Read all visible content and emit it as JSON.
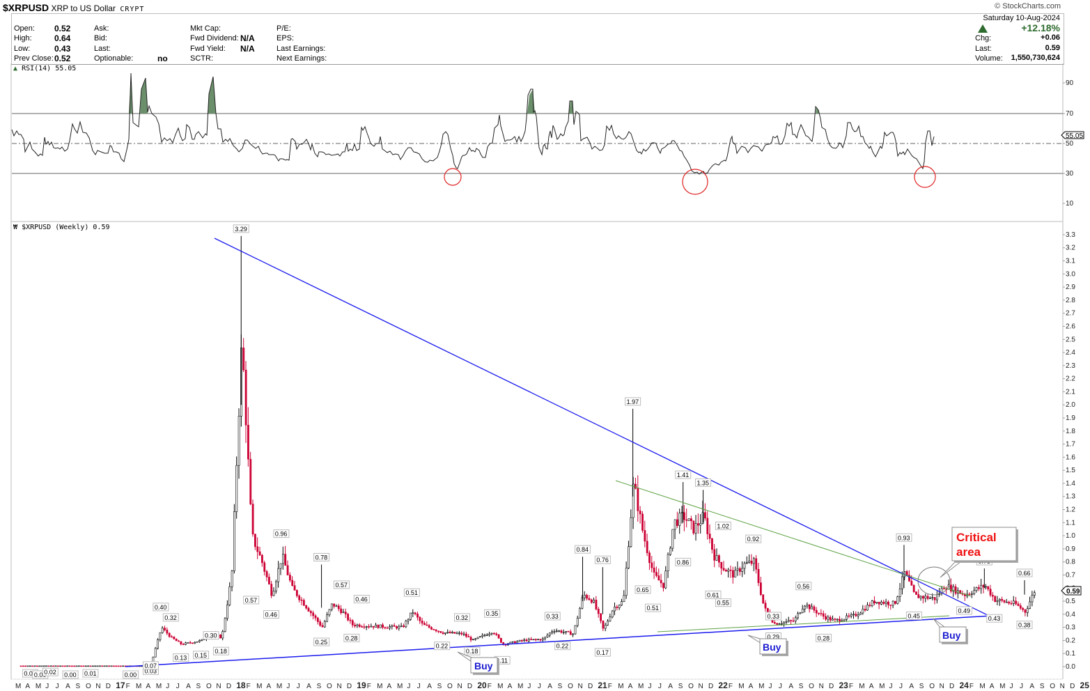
{
  "header": {
    "symbol": "$XRPUSD",
    "name": "XRP to US Dollar",
    "exchange": "CRYPT",
    "copyright": "© StockCharts.com",
    "date": "Saturday  10-Aug-2024",
    "change_pct": "+12.18%",
    "quote": {
      "open_label": "Open:",
      "open": "0.52",
      "high_label": "High:",
      "high": "0.64",
      "low_label": "Low:",
      "low": "0.43",
      "prev_close_label": "Prev Close:",
      "prev_close": "0.52",
      "ask_label": "Ask:",
      "bid_label": "Bid:",
      "last_label2": "Last:",
      "optionable_label": "Optionable:",
      "optionable": "no",
      "mktcap_label": "Mkt Cap:",
      "fwd_div_label": "Fwd Dividend:",
      "fwd_div": "N/A",
      "fwd_yield_label": "Fwd Yield:",
      "fwd_yield": "N/A",
      "sctr_label": "SCTR:",
      "pe_label": "P/E:",
      "eps_label": "EPS:",
      "last_earn_label": "Last Earnings:",
      "next_earn_label": "Next Earnings:"
    },
    "right": {
      "chg_label": "Chg:",
      "chg": "+0.06",
      "last_label": "Last:",
      "last": "0.59",
      "volume_label": "Volume:",
      "volume": "1,550,730,624"
    }
  },
  "rsi_panel": {
    "label": "RSI(14) 55.05",
    "current_value": "55.05",
    "ticks": [
      "90",
      "70",
      "50",
      "30",
      "10"
    ]
  },
  "price_panel": {
    "label": "$XRPUSD (Weekly) 0.59",
    "current_price": "0.59",
    "annotations": {
      "critical_area": [
        "Critical",
        "area"
      ],
      "buy": "Buy"
    }
  },
  "chart_data": [
    {
      "type": "line",
      "title": "RSI(14) 55.05",
      "ylim": [
        0,
        100
      ],
      "reference_lines": [
        70,
        50,
        30
      ],
      "overbought_fill_color": "#6b8f6b",
      "oversold_markers_color": "#e02020",
      "approx_series": [
        {
          "date": "2016-03",
          "value": 55
        },
        {
          "date": "2016-09",
          "value": 45
        },
        {
          "date": "2017-03",
          "value": 50
        },
        {
          "date": "2017-04",
          "value": 96
        },
        {
          "date": "2017-05",
          "value": 93
        },
        {
          "date": "2017-08",
          "value": 55
        },
        {
          "date": "2017-12",
          "value": 95
        },
        {
          "date": "2018-03",
          "value": 50
        },
        {
          "date": "2019-06",
          "value": 45
        },
        {
          "date": "2020-03",
          "value": 31
        },
        {
          "date": "2020-12",
          "value": 85
        },
        {
          "date": "2021-04",
          "value": 80
        },
        {
          "date": "2021-11",
          "value": 55
        },
        {
          "date": "2022-06",
          "value": 29
        },
        {
          "date": "2023-07",
          "value": 74
        },
        {
          "date": "2024-07",
          "value": 34
        },
        {
          "date": "2024-08",
          "value": 55.05
        }
      ],
      "oversold_circles_dates": [
        "2020-03",
        "2022-06",
        "2024-07"
      ]
    },
    {
      "type": "candlestick",
      "title": "$XRPUSD (Weekly) 0.59",
      "ylabel": "Price (USD)",
      "ylim": [
        0.0,
        3.3
      ],
      "yticks": [
        0.0,
        0.1,
        0.2,
        0.3,
        0.4,
        0.5,
        0.6,
        0.7,
        0.8,
        0.9,
        1.0,
        1.1,
        1.2,
        1.3,
        1.4,
        1.5,
        1.6,
        1.7,
        1.8,
        1.9,
        2.0,
        2.1,
        2.2,
        2.3,
        2.4,
        2.5,
        2.6,
        2.7,
        2.8,
        2.9,
        3.0,
        3.1,
        3.2,
        3.3
      ],
      "xtick_labels": [
        "M",
        "A",
        "M",
        "J",
        "J",
        "A",
        "S",
        "O",
        "N",
        "D",
        "17",
        "F",
        "M",
        "A",
        "M",
        "J",
        "J",
        "A",
        "S",
        "O",
        "N",
        "D",
        "18",
        "F",
        "M",
        "A",
        "M",
        "J",
        "J",
        "A",
        "S",
        "O",
        "N",
        "D",
        "19",
        "F",
        "M",
        "A",
        "M",
        "J",
        "J",
        "A",
        "S",
        "O",
        "N",
        "D",
        "20",
        "F",
        "M",
        "A",
        "M",
        "J",
        "J",
        "A",
        "S",
        "O",
        "N",
        "D",
        "21",
        "F",
        "M",
        "A",
        "M",
        "J",
        "J",
        "A",
        "S",
        "O",
        "N",
        "D",
        "22",
        "F",
        "M",
        "A",
        "M",
        "J",
        "J",
        "A",
        "S",
        "O",
        "N",
        "D",
        "23",
        "F",
        "M",
        "A",
        "M",
        "J",
        "J",
        "A",
        "S",
        "O",
        "N",
        "D",
        "24",
        "F",
        "M",
        "A",
        "M",
        "J",
        "J",
        "A",
        "S",
        "O",
        "N",
        "D",
        "25",
        "F",
        "M",
        "A",
        "M",
        "J",
        "J",
        "A",
        "S"
      ],
      "labeled_points": [
        {
          "date": "2016-04",
          "value": 0.01
        },
        {
          "date": "2016-05",
          "value": 0.0
        },
        {
          "date": "2016-06",
          "value": 0.02
        },
        {
          "date": "2016-08",
          "value": 0.0
        },
        {
          "date": "2016-10",
          "value": 0.01
        },
        {
          "date": "2017-02",
          "value": 0.0
        },
        {
          "date": "2017-04",
          "value": 0.03
        },
        {
          "date": "2017-04",
          "value": 0.07
        },
        {
          "date": "2017-05",
          "value": 0.4
        },
        {
          "date": "2017-06",
          "value": 0.32
        },
        {
          "date": "2017-07",
          "value": 0.13
        },
        {
          "date": "2017-09",
          "value": 0.15
        },
        {
          "date": "2017-10",
          "value": 0.3
        },
        {
          "date": "2017-11",
          "value": 0.18
        },
        {
          "date": "2018-01",
          "value": 3.29
        },
        {
          "date": "2018-02",
          "value": 0.57
        },
        {
          "date": "2018-04",
          "value": 0.46
        },
        {
          "date": "2018-05",
          "value": 0.96
        },
        {
          "date": "2018-09",
          "value": 0.25
        },
        {
          "date": "2018-09",
          "value": 0.78
        },
        {
          "date": "2018-11",
          "value": 0.57
        },
        {
          "date": "2018-12",
          "value": 0.28
        },
        {
          "date": "2019-01",
          "value": 0.46
        },
        {
          "date": "2019-06",
          "value": 0.51
        },
        {
          "date": "2019-09",
          "value": 0.22
        },
        {
          "date": "2019-11",
          "value": 0.32
        },
        {
          "date": "2019-12",
          "value": 0.18
        },
        {
          "date": "2020-02",
          "value": 0.35
        },
        {
          "date": "2020-03",
          "value": 0.11
        },
        {
          "date": "2020-08",
          "value": 0.33
        },
        {
          "date": "2020-09",
          "value": 0.22
        },
        {
          "date": "2020-11",
          "value": 0.84
        },
        {
          "date": "2021-01",
          "value": 0.17
        },
        {
          "date": "2021-01",
          "value": 0.76
        },
        {
          "date": "2021-04",
          "value": 1.97
        },
        {
          "date": "2021-05",
          "value": 0.65
        },
        {
          "date": "2021-06",
          "value": 0.51
        },
        {
          "date": "2021-09",
          "value": 1.41
        },
        {
          "date": "2021-09",
          "value": 0.86
        },
        {
          "date": "2021-11",
          "value": 1.35
        },
        {
          "date": "2021-12",
          "value": 0.61
        },
        {
          "date": "2022-01",
          "value": 1.02
        },
        {
          "date": "2022-01",
          "value": 0.55
        },
        {
          "date": "2022-04",
          "value": 0.92
        },
        {
          "date": "2022-06",
          "value": 0.33
        },
        {
          "date": "2022-06",
          "value": 0.29
        },
        {
          "date": "2022-09",
          "value": 0.56
        },
        {
          "date": "2022-11",
          "value": 0.28
        },
        {
          "date": "2023-07",
          "value": 0.93
        },
        {
          "date": "2023-08",
          "value": 0.45
        },
        {
          "date": "2024-01",
          "value": 0.49
        },
        {
          "date": "2024-03",
          "value": 0.75
        },
        {
          "date": "2024-04",
          "value": 0.43
        },
        {
          "date": "2024-07",
          "value": 0.38
        },
        {
          "date": "2024-07",
          "value": 0.66
        }
      ],
      "trendlines": [
        {
          "name": "descending resistance (blue)",
          "from": {
            "date": "2018-01",
            "value": 3.29
          },
          "to": {
            "date": "2025-01",
            "value": 0.39
          },
          "color": "#1a1aee"
        },
        {
          "name": "ascending support (blue)",
          "from": {
            "date": "2017-04",
            "value": 0.0
          },
          "to": {
            "date": "2025-01",
            "value": 0.4
          },
          "color": "#1a1aee"
        },
        {
          "name": "descending resistance (green)",
          "from": {
            "date": "2021-09",
            "value": 1.41
          },
          "to": {
            "date": "2024-12",
            "value": 0.58
          },
          "color": "#5aa040"
        },
        {
          "name": "ascending support (green)",
          "from": {
            "date": "2022-05",
            "value": 0.3
          },
          "to": {
            "date": "2024-11",
            "value": 0.4
          },
          "color": "#5aa040"
        }
      ],
      "last_value": 0.59,
      "grid": false,
      "legend_position": "none"
    }
  ]
}
